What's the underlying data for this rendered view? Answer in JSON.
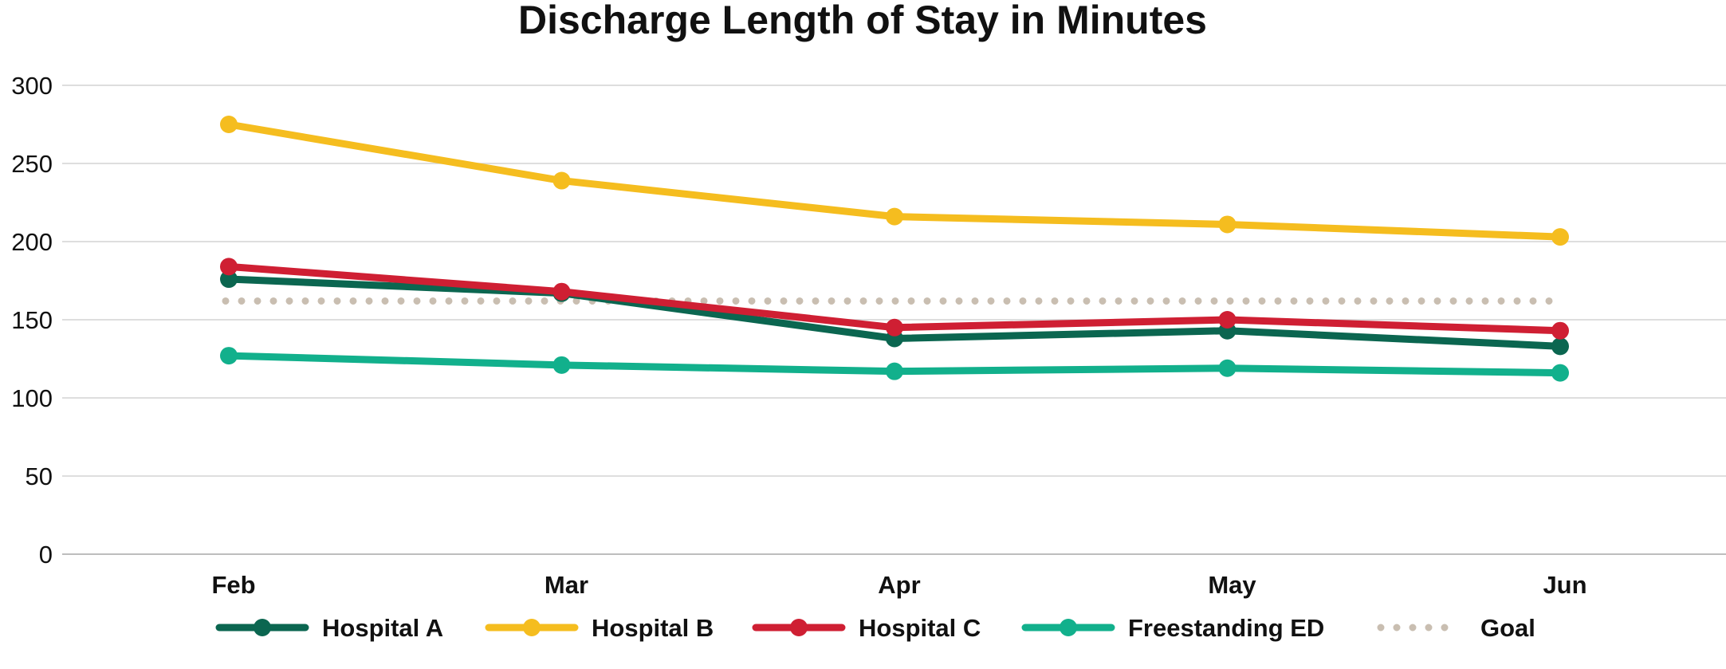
{
  "chart_data": {
    "type": "line",
    "title": "Discharge Length of Stay in Minutes",
    "categories": [
      "Feb",
      "Mar",
      "Apr",
      "May",
      "Jun"
    ],
    "ylim": [
      0,
      300
    ],
    "yticks": [
      0,
      50,
      100,
      150,
      200,
      250,
      300
    ],
    "grid": true,
    "legend_position": "bottom",
    "series": [
      {
        "name": "Hospital A",
        "values": [
          176,
          167,
          138,
          143,
          133
        ],
        "color": "#0b6650",
        "style": "solid"
      },
      {
        "name": "Hospital B",
        "values": [
          275,
          239,
          216,
          211,
          203
        ],
        "color": "#f5bd1f",
        "style": "solid"
      },
      {
        "name": "Hospital C",
        "values": [
          184,
          168,
          145,
          150,
          143
        ],
        "color": "#cf1f33",
        "style": "solid"
      },
      {
        "name": "Freestanding ED",
        "values": [
          127,
          121,
          117,
          119,
          116
        ],
        "color": "#12b08c",
        "style": "solid"
      },
      {
        "name": "Goal",
        "values": [
          162,
          162,
          162,
          162,
          162
        ],
        "color": "#c9beb1",
        "style": "dotted"
      }
    ]
  }
}
